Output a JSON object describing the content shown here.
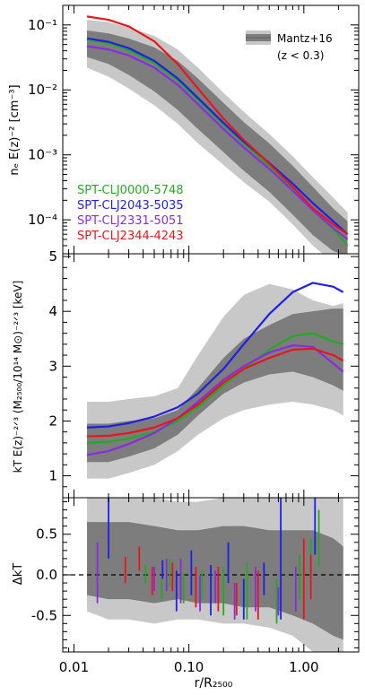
{
  "chart_data": [
    {
      "type": "line",
      "panel": "density",
      "ylabel": "nₑ E(z)⁻² [cm⁻³]",
      "yscale": "log",
      "ylim": [
        3e-05,
        0.2
      ],
      "xscale": "log",
      "xlim": [
        0.008,
        3.0
      ],
      "yticks": [
        {
          "v": 0.1,
          "t": "10⁻¹"
        },
        {
          "v": 0.01,
          "t": "10⁻²"
        },
        {
          "v": 0.001,
          "t": "10⁻³"
        },
        {
          "v": 0.0001,
          "t": "10⁻⁴"
        }
      ],
      "legend": {
        "position": "top-right",
        "label_line1": "Mantz+16",
        "label_line2": "(z < 0.3)"
      },
      "band_outer": {
        "x": [
          0.013,
          0.02,
          0.03,
          0.05,
          0.08,
          0.12,
          0.2,
          0.3,
          0.5,
          0.8,
          1.2,
          1.8,
          2.4
        ],
        "low": [
          0.022,
          0.016,
          0.0105,
          0.0058,
          0.003,
          0.0015,
          0.0007,
          0.00038,
          0.00019,
          8.5e-05,
          4e-05,
          2.2e-05,
          1.8e-05
        ],
        "high": [
          0.12,
          0.11,
          0.092,
          0.068,
          0.042,
          0.022,
          0.009,
          0.0046,
          0.0021,
          0.00095,
          0.00045,
          0.00022,
          0.00013
        ]
      },
      "band_inner": {
        "x": [
          0.013,
          0.02,
          0.03,
          0.05,
          0.08,
          0.12,
          0.2,
          0.3,
          0.5,
          0.8,
          1.2,
          1.8,
          2.4
        ],
        "low": [
          0.032,
          0.025,
          0.017,
          0.0095,
          0.0049,
          0.0025,
          0.0011,
          0.00057,
          0.00027,
          0.00012,
          5.8e-05,
          3.3e-05,
          2.8e-05
        ],
        "high": [
          0.082,
          0.074,
          0.062,
          0.045,
          0.028,
          0.015,
          0.0063,
          0.0032,
          0.0015,
          0.00068,
          0.00032,
          0.00015,
          9.5e-05
        ]
      },
      "series": [
        {
          "name": "SPT-CLJ0000-5748",
          "color": "#22aa22",
          "x": [
            0.013,
            0.02,
            0.03,
            0.05,
            0.08,
            0.12,
            0.2,
            0.3,
            0.5,
            0.8,
            1.2,
            1.8,
            2.4
          ],
          "y": [
            0.06,
            0.052,
            0.041,
            0.026,
            0.014,
            0.007,
            0.0029,
            0.0015,
            0.00068,
            0.0003,
            0.00014,
            7.2e-05,
            4e-05
          ]
        },
        {
          "name": "SPT-CLJ2043-5035",
          "color": "#1f1fe6",
          "x": [
            0.013,
            0.02,
            0.03,
            0.05,
            0.08,
            0.12,
            0.2,
            0.3,
            0.5,
            0.8,
            1.2,
            1.8,
            2.4
          ],
          "y": [
            0.062,
            0.055,
            0.044,
            0.028,
            0.015,
            0.0075,
            0.0031,
            0.0016,
            0.00075,
            0.00036,
            0.00018,
            9.5e-05,
            6e-05
          ]
        },
        {
          "name": "SPT-CLJ2331-5051",
          "color": "#8a2be2",
          "x": [
            0.013,
            0.02,
            0.03,
            0.05,
            0.08,
            0.12,
            0.2,
            0.3,
            0.5,
            0.8,
            1.2,
            1.8,
            2.4
          ],
          "y": [
            0.047,
            0.042,
            0.034,
            0.022,
            0.012,
            0.006,
            0.0025,
            0.0013,
            0.00061,
            0.00028,
            0.00014,
            7.5e-05,
            5e-05
          ]
        },
        {
          "name": "SPT-CLJ2344-4243",
          "color": "#e8161b",
          "x": [
            0.013,
            0.02,
            0.03,
            0.05,
            0.08,
            0.12,
            0.2,
            0.3,
            0.5,
            0.8,
            1.2,
            1.8,
            2.4
          ],
          "y": [
            0.135,
            0.12,
            0.095,
            0.056,
            0.025,
            0.0105,
            0.0036,
            0.0017,
            0.00073,
            0.00032,
            0.00015,
            8.5e-05,
            6e-05
          ]
        }
      ]
    },
    {
      "type": "line",
      "panel": "temperature",
      "ylabel": "kT E(z)⁻²ᐟ³ (M₂₅₀₀/10¹⁴ M⊙)⁻²ᐟ³ [keV]",
      "ylim": [
        0.6,
        5.05
      ],
      "yticks": [
        {
          "v": 1,
          "t": "1"
        },
        {
          "v": 2,
          "t": "2"
        },
        {
          "v": 3,
          "t": "3"
        },
        {
          "v": 4,
          "t": "4"
        },
        {
          "v": 5,
          "t": "5"
        }
      ],
      "band_outer": {
        "x": [
          0.013,
          0.02,
          0.03,
          0.05,
          0.08,
          0.12,
          0.2,
          0.3,
          0.5,
          0.8,
          1.2,
          1.8,
          2.2
        ],
        "low": [
          0.95,
          0.95,
          1.05,
          1.2,
          1.45,
          1.75,
          2.05,
          2.2,
          2.3,
          2.35,
          2.3,
          2.2,
          2.1
        ],
        "high": [
          2.35,
          2.35,
          2.4,
          2.45,
          2.6,
          3.2,
          3.9,
          4.3,
          4.5,
          4.4,
          4.2,
          4.1,
          4.15
        ]
      },
      "band_inner": {
        "x": [
          0.013,
          0.02,
          0.03,
          0.05,
          0.08,
          0.12,
          0.2,
          0.3,
          0.5,
          0.8,
          1.2,
          1.8,
          2.2
        ],
        "low": [
          1.25,
          1.25,
          1.35,
          1.5,
          1.75,
          2.1,
          2.5,
          2.7,
          2.85,
          2.9,
          2.8,
          2.65,
          2.55
        ],
        "high": [
          1.95,
          1.95,
          2.0,
          2.05,
          2.2,
          2.6,
          3.15,
          3.5,
          3.75,
          3.95,
          4.0,
          4.05,
          4.05
        ]
      },
      "series": [
        {
          "name": "SPT-CLJ0000-5748",
          "color": "#22aa22",
          "x": [
            0.013,
            0.02,
            0.03,
            0.05,
            0.08,
            0.12,
            0.2,
            0.3,
            0.5,
            0.8,
            1.2,
            1.8,
            2.2
          ],
          "y": [
            1.6,
            1.62,
            1.68,
            1.8,
            2.0,
            2.25,
            2.65,
            2.95,
            3.3,
            3.55,
            3.6,
            3.45,
            3.4
          ]
        },
        {
          "name": "SPT-CLJ2043-5035",
          "color": "#1f1fe6",
          "x": [
            0.013,
            0.02,
            0.03,
            0.05,
            0.08,
            0.12,
            0.2,
            0.3,
            0.5,
            0.8,
            1.2,
            1.8,
            2.2
          ],
          "y": [
            1.88,
            1.9,
            1.96,
            2.08,
            2.25,
            2.5,
            2.95,
            3.4,
            3.95,
            4.35,
            4.52,
            4.45,
            4.35
          ]
        },
        {
          "name": "SPT-CLJ2331-5051",
          "color": "#8a2be2",
          "x": [
            0.013,
            0.02,
            0.03,
            0.05,
            0.08,
            0.12,
            0.2,
            0.3,
            0.5,
            0.8,
            1.2,
            1.8,
            2.2
          ],
          "y": [
            1.38,
            1.45,
            1.58,
            1.78,
            2.05,
            2.35,
            2.75,
            3.0,
            3.25,
            3.38,
            3.35,
            3.05,
            2.9
          ]
        },
        {
          "name": "SPT-CLJ2344-4243",
          "color": "#e8161b",
          "x": [
            0.013,
            0.02,
            0.03,
            0.05,
            0.08,
            0.12,
            0.2,
            0.3,
            0.5,
            0.8,
            1.2,
            1.8,
            2.2
          ],
          "y": [
            1.72,
            1.73,
            1.78,
            1.88,
            2.05,
            2.3,
            2.7,
            2.95,
            3.15,
            3.3,
            3.32,
            3.2,
            3.1
          ]
        }
      ]
    },
    {
      "type": "scatter",
      "panel": "residual",
      "xlabel": "r/R₂₅₀₀",
      "ylabel": "ΔkT",
      "ylim": [
        -0.95,
        0.95
      ],
      "yticks": [
        {
          "v": 0.5,
          "t": "0.5"
        },
        {
          "v": 0.0,
          "t": "0.0"
        },
        {
          "v": -0.5,
          "t": "-0.5"
        }
      ],
      "xticks": [
        {
          "v": 0.01,
          "t": "0.01"
        },
        {
          "v": 0.1,
          "t": "0.10"
        },
        {
          "v": 1,
          "t": "1.00"
        }
      ],
      "reference_line": 0.0,
      "band_outer": {
        "x": [
          0.013,
          0.02,
          0.03,
          0.05,
          0.08,
          0.12,
          0.2,
          0.3,
          0.5,
          0.8,
          1.2,
          1.8,
          2.2
        ],
        "low": [
          -0.45,
          -0.55,
          -0.55,
          -0.6,
          -0.55,
          -0.55,
          -0.6,
          -0.6,
          -0.65,
          -0.75,
          -0.95,
          -0.95,
          -0.95
        ],
        "high": [
          0.95,
          0.95,
          0.95,
          0.95,
          0.9,
          0.9,
          0.95,
          0.95,
          0.95,
          0.95,
          0.95,
          0.95,
          0.95
        ]
      },
      "band_inner": {
        "x": [
          0.013,
          0.02,
          0.03,
          0.05,
          0.08,
          0.12,
          0.2,
          0.3,
          0.5,
          0.8,
          1.2,
          1.8,
          2.2
        ],
        "low": [
          -0.25,
          -0.3,
          -0.3,
          -0.35,
          -0.3,
          -0.35,
          -0.35,
          -0.4,
          -0.4,
          -0.5,
          -0.6,
          -0.75,
          -0.8
        ],
        "high": [
          0.65,
          0.65,
          0.65,
          0.6,
          0.55,
          0.55,
          0.6,
          0.6,
          0.55,
          0.55,
          0.55,
          0.45,
          0.35
        ]
      },
      "series": [
        {
          "name": "SPT-CLJ0000-5748",
          "color": "#22aa22",
          "bars": [
            [
              0.042,
              0.12,
              -0.1
            ],
            [
              0.058,
              -0.05,
              -0.3
            ],
            [
              0.068,
              0.2,
              -0.15
            ],
            [
              0.09,
              0.02,
              -0.35
            ],
            [
              0.13,
              0.05,
              -0.3
            ],
            [
              0.2,
              0.1,
              -0.5
            ],
            [
              0.32,
              0.15,
              -0.55
            ],
            [
              0.58,
              -0.05,
              -0.6
            ],
            [
              0.92,
              0.25,
              -0.3
            ],
            [
              1.15,
              0.45,
              -0.1
            ],
            [
              1.35,
              0.8,
              0.1
            ]
          ]
        },
        {
          "name": "SPT-CLJ2043-5035",
          "color": "#1f1fe6",
          "bars": [
            [
              0.02,
              0.95,
              0.2
            ],
            [
              0.059,
              0.18,
              -0.05
            ],
            [
              0.078,
              0.05,
              -0.45
            ],
            [
              0.105,
              0.3,
              -0.25
            ],
            [
              0.155,
              0.12,
              -0.5
            ],
            [
              0.22,
              0.4,
              -0.1
            ],
            [
              0.3,
              -0.05,
              -0.55
            ],
            [
              0.45,
              0.15,
              -0.25
            ],
            [
              0.63,
              0.95,
              -0.55
            ],
            [
              1.25,
              0.95,
              0.25
            ]
          ]
        },
        {
          "name": "SPT-CLJ2331-5051",
          "color": "#8a2be2",
          "bars": [
            [
              0.016,
              0.4,
              -0.35
            ],
            [
              0.05,
              0.1,
              -0.2
            ],
            [
              0.064,
              0.2,
              -0.2
            ],
            [
              0.085,
              0.2,
              -0.35
            ],
            [
              0.125,
              0.0,
              -0.45
            ],
            [
              0.17,
              0.05,
              -0.35
            ],
            [
              0.25,
              -0.1,
              -0.55
            ],
            [
              0.38,
              0.1,
              -0.45
            ],
            [
              0.6,
              -0.15,
              -0.5
            ],
            [
              0.85,
              0.1,
              -0.45
            ]
          ]
        },
        {
          "name": "SPT-CLJ2344-4243",
          "color": "#e8161b",
          "bars": [
            [
              0.028,
              0.22,
              -0.1
            ],
            [
              0.037,
              0.35,
              0.05
            ],
            [
              0.048,
              0.1,
              -0.25
            ],
            [
              0.072,
              0.15,
              -0.2
            ],
            [
              0.115,
              0.1,
              -0.4
            ],
            [
              0.18,
              0.1,
              -0.45
            ],
            [
              0.26,
              -0.1,
              -0.5
            ],
            [
              0.4,
              0.05,
              -0.55
            ],
            [
              1.0,
              0.45,
              -0.55
            ],
            [
              1.15,
              0.25,
              -0.3
            ]
          ]
        }
      ]
    }
  ]
}
